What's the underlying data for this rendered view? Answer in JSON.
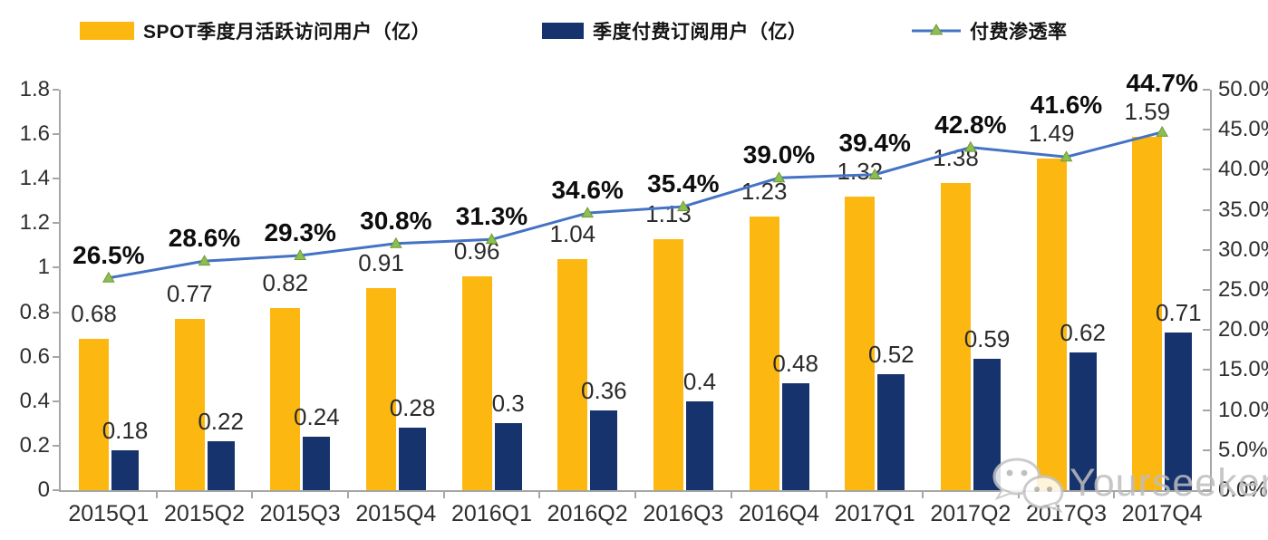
{
  "chart_data": {
    "type": "combo",
    "categories": [
      "2015Q1",
      "2015Q2",
      "2015Q3",
      "2015Q4",
      "2016Q1",
      "2016Q2",
      "2016Q3",
      "2016Q4",
      "2017Q1",
      "2017Q2",
      "2017Q3",
      "2017Q4"
    ],
    "series": [
      {
        "name": "SPOT季度月活跃访问用户（亿）",
        "type": "bar",
        "axis": "left",
        "color": "#FCB811",
        "values": [
          0.68,
          0.77,
          0.82,
          0.91,
          0.96,
          1.04,
          1.13,
          1.23,
          1.32,
          1.38,
          1.49,
          1.59
        ],
        "labels": [
          "0.68",
          "0.77",
          "0.82",
          "0.91",
          "0.96",
          "1.04",
          "1.13",
          "1.23",
          "1.32",
          "1.38",
          "1.49",
          "1.59"
        ]
      },
      {
        "name": "季度付费订阅用户（亿）",
        "type": "bar",
        "axis": "left",
        "color": "#17336D",
        "values": [
          0.18,
          0.22,
          0.24,
          0.28,
          0.3,
          0.36,
          0.4,
          0.48,
          0.52,
          0.59,
          0.62,
          0.71
        ],
        "labels": [
          "0.18",
          "0.22",
          "0.24",
          "0.28",
          "0.3",
          "0.36",
          "0.4",
          "0.48",
          "0.52",
          "0.59",
          "0.62",
          "0.71"
        ]
      },
      {
        "name": "付费渗透率",
        "type": "line",
        "axis": "right",
        "color": "#4472C4",
        "marker": "triangle-up",
        "marker_color": "#8EBD52",
        "marker_edge_color": "#6F9C39",
        "values": [
          26.5,
          28.6,
          29.3,
          30.8,
          31.3,
          34.6,
          35.4,
          39.0,
          39.4,
          42.8,
          41.6,
          44.7
        ],
        "labels": [
          "26.5%",
          "28.6%",
          "29.3%",
          "30.8%",
          "31.3%",
          "34.6%",
          "35.4%",
          "39.0%",
          "39.4%",
          "42.8%",
          "41.6%",
          "44.7%"
        ]
      }
    ],
    "left_axis": {
      "min": 0,
      "max": 1.8,
      "step": 0.2,
      "tick_labels": [
        "0",
        "0.2",
        "0.4",
        "0.6",
        "0.8",
        "1",
        "1.2",
        "1.4",
        "1.6",
        "1.8"
      ]
    },
    "right_axis": {
      "min": 0,
      "max": 50,
      "step": 5,
      "tick_labels": [
        "0.0%",
        "5.0%",
        "10.0%",
        "15.0%",
        "20.0%",
        "25.0%",
        "30.0%",
        "35.0%",
        "40.0%",
        "45.0%",
        "50.0%"
      ]
    },
    "grid": false,
    "legend_position": "top"
  },
  "watermark": {
    "text": "Yourseeker",
    "icon": "wechat-icon"
  }
}
